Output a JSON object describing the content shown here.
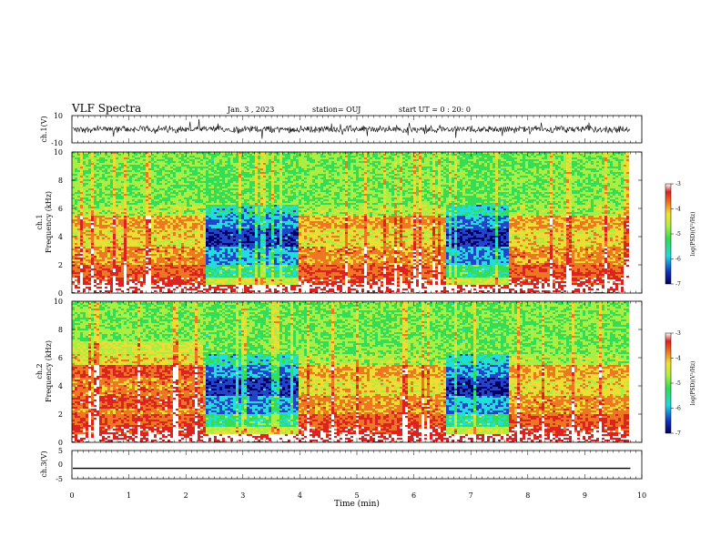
{
  "header": {
    "title": "VLF Spectra",
    "date": "Jan. 3 , 2023",
    "station": "station= OUJ",
    "start": "start UT = 0 : 20: 0"
  },
  "colors": {
    "axis": "#000000",
    "colormap": [
      "#ffffff",
      "#dd2222",
      "#ee7722",
      "#eedd33",
      "#aaee44",
      "#33dd55",
      "#22dddd",
      "#2244cc",
      "#000060"
    ],
    "trace": "#000000"
  },
  "chart_data": [
    {
      "type": "line",
      "panel": "ch1-waveform",
      "ylabel": "ch.1(V)",
      "ylim": [
        -10,
        10
      ],
      "yticks": [
        "10",
        "-10"
      ],
      "xlim": [
        0,
        10
      ],
      "description_values": {
        "mean": 0,
        "amplitude_typical": 3
      }
    },
    {
      "type": "heatmap",
      "panel": "ch1-spectrogram",
      "ylabel": "ch.1\nFrequency (kHz)",
      "ylabel_line1": "ch.1",
      "ylabel_line2": "Frequency (kHz)",
      "ylim": [
        0,
        10
      ],
      "yticks": [
        "0",
        "2",
        "4",
        "6",
        "8",
        "10"
      ],
      "xlim": [
        0,
        10
      ],
      "data_end_min": 9.8,
      "quiet_intervals_min": [
        [
          2.33,
          3.97
        ],
        [
          6.55,
          7.65
        ]
      ],
      "colorbar": {
        "label": "log(PSD)(V²/Hz)",
        "range": [
          -7,
          -3
        ],
        "ticks": [
          "-3",
          "-4",
          "-5",
          "-6",
          "-7"
        ]
      }
    },
    {
      "type": "heatmap",
      "panel": "ch2-spectrogram",
      "ylabel_line1": "ch.2",
      "ylabel_line2": "Frequency (kHz)",
      "ylim": [
        0,
        10
      ],
      "yticks": [
        "0",
        "2",
        "4",
        "6",
        "8",
        "10"
      ],
      "xlim": [
        0,
        10
      ],
      "data_end_min": 9.8,
      "quiet_intervals_min": [
        [
          2.33,
          3.97
        ],
        [
          6.55,
          7.65
        ]
      ],
      "colorbar": {
        "label": "log(PSD)(V²/Hz)",
        "range": [
          -7,
          -3
        ],
        "ticks": [
          "-3",
          "-4",
          "-5",
          "-6",
          "-7"
        ]
      }
    },
    {
      "type": "line",
      "panel": "ch3-waveform",
      "ylabel": "ch.3(V)",
      "ylim": [
        -5,
        5
      ],
      "yticks": [
        "5",
        "0",
        "-5"
      ],
      "xlim": [
        0,
        10
      ],
      "constant_value": -1.3
    }
  ],
  "x_axis": {
    "label": "Time (min)",
    "ticks": [
      "0",
      "1",
      "2",
      "3",
      "4",
      "5",
      "6",
      "7",
      "8",
      "9",
      "10"
    ]
  }
}
